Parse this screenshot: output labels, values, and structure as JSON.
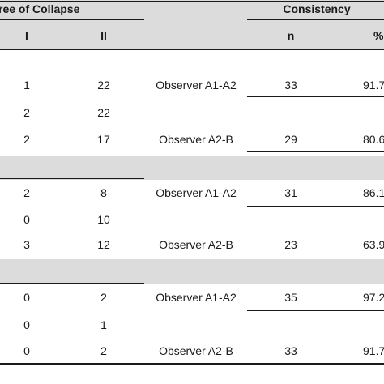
{
  "header": {
    "degree_of_collapse": "ree of Collapse",
    "consistency": "Consistency",
    "col_i": "I",
    "col_ii": "II",
    "col_n": "n",
    "col_pct": "%"
  },
  "groups": [
    {
      "rows": [
        {
          "i": "1",
          "ii": "22",
          "pair": "Observer A1-A2",
          "n": "33",
          "pct": "91.7"
        },
        {
          "i": "2",
          "ii": "22",
          "pair": "",
          "n": "",
          "pct": ""
        },
        {
          "i": "2",
          "ii": "17",
          "pair": "Observer A2-B",
          "n": "29",
          "pct": "80.6"
        }
      ]
    },
    {
      "rows": [
        {
          "i": "2",
          "ii": "8",
          "pair": "Observer A1-A2",
          "n": "31",
          "pct": "86.1"
        },
        {
          "i": "0",
          "ii": "10",
          "pair": "",
          "n": "",
          "pct": ""
        },
        {
          "i": "3",
          "ii": "12",
          "pair": "Observer A2-B",
          "n": "23",
          "pct": "63.9"
        }
      ]
    },
    {
      "rows": [
        {
          "i": "0",
          "ii": "2",
          "pair": "Observer A1-A2",
          "n": "35",
          "pct": "97.2"
        },
        {
          "i": "0",
          "ii": "1",
          "pair": "",
          "n": "",
          "pct": ""
        },
        {
          "i": "0",
          "ii": "2",
          "pair": "Observer A2-B",
          "n": "33",
          "pct": "91.7"
        }
      ]
    }
  ]
}
